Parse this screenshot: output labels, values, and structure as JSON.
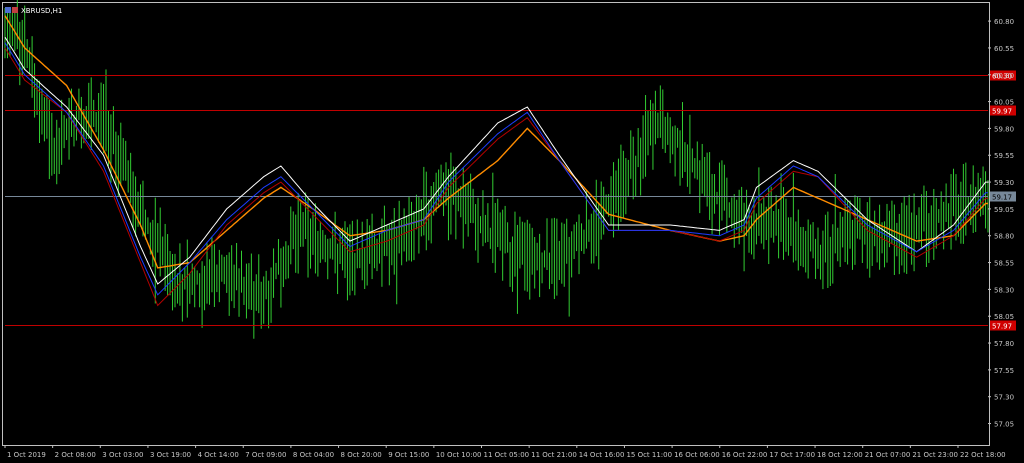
{
  "window": {
    "title": "XBRUSD,H1"
  },
  "colors": {
    "background": "#000000",
    "frame": "#c0c0c0",
    "bar_up": "#32cd32",
    "level_line": "#c00000",
    "level_label_bg": "#d00000",
    "current_line": "#778899",
    "current_label_bg": "#778899",
    "ma_white": "#ffffff",
    "ma_blue": "#1e3cff",
    "ma_red": "#b40000",
    "ma_orange": "#ff8c00"
  },
  "chart_data": {
    "type": "line",
    "symbol": "XBRUSD",
    "timeframe": "H1",
    "ylim": [
      56.85,
      60.95
    ],
    "yticks": [
      "60.80",
      "60.55",
      "60.30",
      "60.05",
      "59.80",
      "59.55",
      "59.30",
      "59.05",
      "58.80",
      "58.55",
      "58.30",
      "58.05",
      "57.80",
      "57.55",
      "57.30",
      "57.05"
    ],
    "xticks": [
      "1 Oct 2019",
      "2 Oct 08:00",
      "3 Oct 03:00",
      "3 Oct 19:00",
      "4 Oct 14:00",
      "7 Oct 09:00",
      "8 Oct 04:00",
      "8 Oct 20:00",
      "9 Oct 15:00",
      "10 Oct 10:00",
      "11 Oct 05:00",
      "11 Oct 21:00",
      "14 Oct 16:00",
      "15 Oct 11:00",
      "16 Oct 06:00",
      "16 Oct 22:00",
      "17 Oct 17:00",
      "18 Oct 12:00",
      "21 Oct 07:00",
      "21 Oct 23:00",
      "22 Oct 18:00"
    ],
    "x_count": 400,
    "levels": [
      {
        "label": "60.30",
        "value": 60.3
      },
      {
        "label": "59.97",
        "value": 59.97
      },
      {
        "label": "57.97",
        "value": 57.97
      }
    ],
    "current_price": {
      "label": "59.17",
      "value": 59.17
    },
    "bar_anchors": [
      [
        0,
        60.7
      ],
      [
        8,
        60.55
      ],
      [
        20,
        59.55
      ],
      [
        30,
        59.95
      ],
      [
        40,
        59.85
      ],
      [
        55,
        59.05
      ],
      [
        70,
        58.35
      ],
      [
        88,
        58.45
      ],
      [
        105,
        58.25
      ],
      [
        120,
        58.85
      ],
      [
        140,
        58.55
      ],
      [
        160,
        58.75
      ],
      [
        178,
        59.25
      ],
      [
        200,
        58.75
      ],
      [
        215,
        58.55
      ],
      [
        230,
        58.65
      ],
      [
        250,
        59.25
      ],
      [
        265,
        59.85
      ],
      [
        275,
        59.65
      ],
      [
        287,
        59.2
      ],
      [
        300,
        58.9
      ],
      [
        315,
        58.95
      ],
      [
        330,
        58.65
      ],
      [
        345,
        58.85
      ],
      [
        355,
        58.75
      ],
      [
        370,
        58.85
      ],
      [
        385,
        59.05
      ],
      [
        398,
        59.17
      ]
    ],
    "ma_white": [
      [
        0,
        60.65
      ],
      [
        8,
        60.35
      ],
      [
        25,
        60.0
      ],
      [
        40,
        59.55
      ],
      [
        55,
        58.7
      ],
      [
        62,
        58.35
      ],
      [
        75,
        58.6
      ],
      [
        90,
        59.05
      ],
      [
        105,
        59.35
      ],
      [
        112,
        59.45
      ],
      [
        125,
        59.1
      ],
      [
        140,
        58.75
      ],
      [
        155,
        58.9
      ],
      [
        170,
        59.05
      ],
      [
        180,
        59.35
      ],
      [
        200,
        59.85
      ],
      [
        212,
        60.0
      ],
      [
        225,
        59.55
      ],
      [
        245,
        58.9
      ],
      [
        270,
        58.9
      ],
      [
        290,
        58.85
      ],
      [
        300,
        58.95
      ],
      [
        305,
        59.25
      ],
      [
        320,
        59.5
      ],
      [
        330,
        59.4
      ],
      [
        350,
        58.95
      ],
      [
        370,
        58.65
      ],
      [
        385,
        58.9
      ],
      [
        398,
        59.3
      ]
    ],
    "ma_blue": [
      [
        0,
        60.6
      ],
      [
        8,
        60.3
      ],
      [
        25,
        59.95
      ],
      [
        40,
        59.45
      ],
      [
        55,
        58.6
      ],
      [
        62,
        58.25
      ],
      [
        75,
        58.55
      ],
      [
        90,
        58.95
      ],
      [
        105,
        59.25
      ],
      [
        112,
        59.35
      ],
      [
        125,
        59.05
      ],
      [
        140,
        58.7
      ],
      [
        155,
        58.85
      ],
      [
        170,
        58.95
      ],
      [
        180,
        59.3
      ],
      [
        200,
        59.75
      ],
      [
        212,
        59.95
      ],
      [
        225,
        59.5
      ],
      [
        245,
        58.85
      ],
      [
        270,
        58.85
      ],
      [
        290,
        58.8
      ],
      [
        300,
        58.9
      ],
      [
        305,
        59.15
      ],
      [
        320,
        59.45
      ],
      [
        330,
        59.35
      ],
      [
        350,
        58.9
      ],
      [
        370,
        58.65
      ],
      [
        385,
        58.85
      ],
      [
        398,
        59.2
      ]
    ],
    "ma_red": [
      [
        0,
        60.55
      ],
      [
        8,
        60.25
      ],
      [
        25,
        59.95
      ],
      [
        40,
        59.4
      ],
      [
        55,
        58.55
      ],
      [
        62,
        58.15
      ],
      [
        75,
        58.45
      ],
      [
        90,
        58.9
      ],
      [
        105,
        59.2
      ],
      [
        112,
        59.3
      ],
      [
        125,
        59.0
      ],
      [
        140,
        58.65
      ],
      [
        155,
        58.75
      ],
      [
        170,
        58.9
      ],
      [
        180,
        59.25
      ],
      [
        200,
        59.7
      ],
      [
        212,
        59.9
      ],
      [
        225,
        59.5
      ],
      [
        245,
        58.85
      ],
      [
        270,
        58.85
      ],
      [
        290,
        58.75
      ],
      [
        300,
        58.85
      ],
      [
        305,
        59.1
      ],
      [
        320,
        59.4
      ],
      [
        330,
        59.35
      ],
      [
        350,
        58.85
      ],
      [
        370,
        58.6
      ],
      [
        385,
        58.8
      ],
      [
        398,
        59.15
      ]
    ],
    "ma_orange": [
      [
        0,
        60.85
      ],
      [
        8,
        60.55
      ],
      [
        25,
        60.2
      ],
      [
        40,
        59.6
      ],
      [
        55,
        58.9
      ],
      [
        62,
        58.5
      ],
      [
        75,
        58.55
      ],
      [
        90,
        58.85
      ],
      [
        105,
        59.15
      ],
      [
        112,
        59.25
      ],
      [
        125,
        59.05
      ],
      [
        140,
        58.8
      ],
      [
        155,
        58.85
      ],
      [
        170,
        58.95
      ],
      [
        180,
        59.15
      ],
      [
        200,
        59.5
      ],
      [
        212,
        59.8
      ],
      [
        225,
        59.5
      ],
      [
        245,
        59.0
      ],
      [
        270,
        58.85
      ],
      [
        290,
        58.75
      ],
      [
        300,
        58.8
      ],
      [
        305,
        58.95
      ],
      [
        320,
        59.25
      ],
      [
        330,
        59.15
      ],
      [
        350,
        58.95
      ],
      [
        370,
        58.75
      ],
      [
        385,
        58.8
      ],
      [
        398,
        59.1
      ]
    ]
  }
}
